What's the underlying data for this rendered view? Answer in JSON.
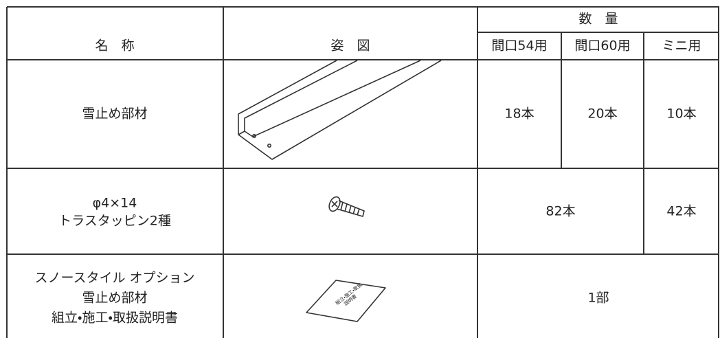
{
  "table": {
    "header": {
      "name": "名　称",
      "figure": "姿　図",
      "quantity": "数　量",
      "sub": [
        "間口54用",
        "間口60用",
        "ミニ用"
      ]
    },
    "rows": [
      {
        "name": [
          "雪止め部材"
        ],
        "quantities": [
          "18本",
          "20本",
          "10本"
        ]
      },
      {
        "name": [
          "φ4×14",
          "トラスタッピン2種"
        ],
        "quantities": [
          "82本",
          "42本"
        ]
      },
      {
        "name": [
          "スノースタイル オプション",
          "雪止め部材",
          "組立・施工・取扱説明書"
        ],
        "quantities": [
          "1部"
        ],
        "figure_text": [
          "組立・施工・取扱",
          "説明書"
        ]
      }
    ]
  }
}
